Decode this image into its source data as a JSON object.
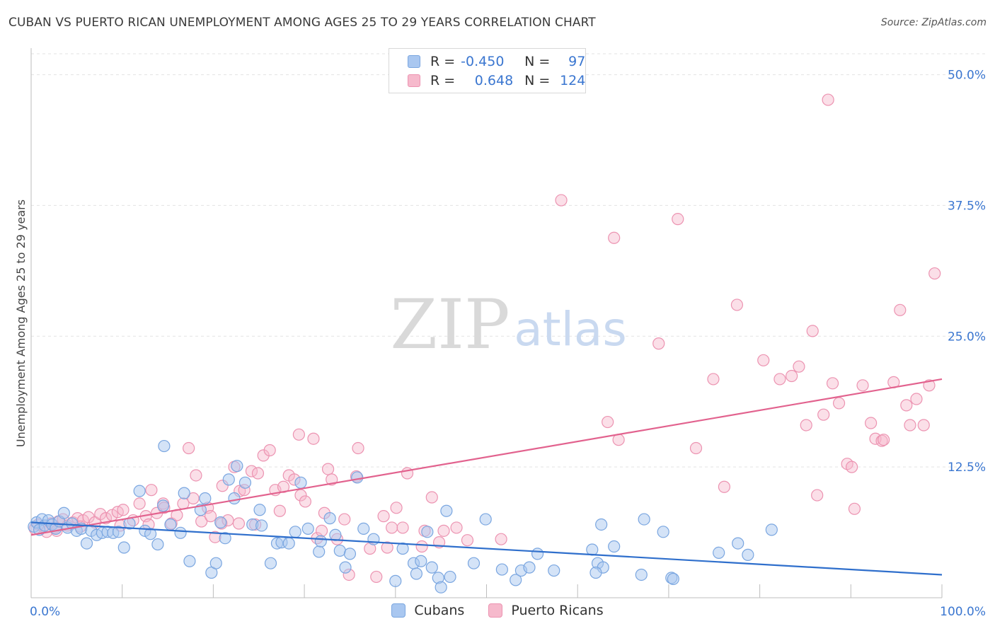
{
  "header": {
    "title": "CUBAN VS PUERTO RICAN UNEMPLOYMENT AMONG AGES 25 TO 29 YEARS CORRELATION CHART",
    "source": "Source: ZipAtlas.com"
  },
  "watermark": {
    "zip": "ZIP",
    "atlas": "atlas"
  },
  "legend": {
    "rows": [
      {
        "r_label": "R =",
        "r_value": "-0.450",
        "n_label": "N =",
        "n_value": "97"
      },
      {
        "r_label": "R =",
        "r_value": "0.648",
        "n_label": "N =",
        "n_value": "124"
      }
    ]
  },
  "bottom_legend": {
    "cubans": "Cubans",
    "puerto_ricans": "Puerto Ricans"
  },
  "colors": {
    "cubans_fill": "#a9c7f0",
    "cubans_stroke": "#7aa6e0",
    "cubans_line": "#2f6fcc",
    "pr_fill": "#f6b9cc",
    "pr_stroke": "#ec93b1",
    "pr_line": "#e2628e",
    "axis_text": "#3a76d0"
  },
  "chart_data": {
    "type": "scatter",
    "title": "CUBAN VS PUERTO RICAN UNEMPLOYMENT AMONG AGES 25 TO 29 YEARS CORRELATION CHART",
    "xlabel": "",
    "ylabel": "Unemployment Among Ages 25 to 29 years",
    "xlim": [
      0,
      100
    ],
    "ylim": [
      0,
      52
    ],
    "x_tick_labels": [
      {
        "value": 0,
        "label": "0.0%"
      },
      {
        "value": 100,
        "label": "100.0%"
      }
    ],
    "y_tick_labels": [
      {
        "value": 12.5,
        "label": "12.5%"
      },
      {
        "value": 25,
        "label": "25.0%"
      },
      {
        "value": 37.5,
        "label": "37.5%"
      },
      {
        "value": 50,
        "label": "50.0%"
      }
    ],
    "x_minor_ticks": [
      10,
      20,
      30,
      40,
      50,
      60,
      70,
      80,
      90,
      100
    ],
    "grid": true,
    "legend_placement": "top-center",
    "series": [
      {
        "name": "Cubans",
        "trend": {
          "x": [
            0,
            100
          ],
          "y": [
            7.2,
            2.2
          ]
        },
        "points": [
          [
            0.3,
            6.8
          ],
          [
            0.6,
            7.2
          ],
          [
            0.9,
            6.5
          ],
          [
            1.2,
            7.5
          ],
          [
            1.5,
            6.9
          ],
          [
            1.9,
            7.4
          ],
          [
            2.3,
            7.0
          ],
          [
            2.7,
            6.6
          ],
          [
            3.1,
            7.3
          ],
          [
            3.6,
            8.1
          ],
          [
            4.0,
            6.7
          ],
          [
            4.5,
            7.1
          ],
          [
            5.0,
            6.4
          ],
          [
            5.5,
            6.6
          ],
          [
            6.1,
            5.2
          ],
          [
            6.6,
            6.4
          ],
          [
            7.2,
            6.0
          ],
          [
            7.8,
            6.2
          ],
          [
            8.4,
            6.3
          ],
          [
            9.0,
            6.2
          ],
          [
            9.6,
            6.3
          ],
          [
            10.2,
            4.8
          ],
          [
            10.8,
            7.1
          ],
          [
            11.9,
            10.2
          ],
          [
            12.5,
            6.4
          ],
          [
            13.1,
            6.1
          ],
          [
            13.9,
            5.1
          ],
          [
            14.5,
            8.8
          ],
          [
            14.6,
            14.5
          ],
          [
            15.3,
            7.0
          ],
          [
            16.4,
            6.2
          ],
          [
            16.8,
            10.0
          ],
          [
            17.4,
            3.5
          ],
          [
            18.6,
            8.4
          ],
          [
            19.1,
            9.5
          ],
          [
            19.8,
            2.4
          ],
          [
            20.3,
            3.3
          ],
          [
            20.8,
            7.2
          ],
          [
            21.3,
            5.7
          ],
          [
            21.7,
            11.3
          ],
          [
            22.3,
            9.5
          ],
          [
            22.6,
            12.6
          ],
          [
            23.5,
            11.0
          ],
          [
            24.3,
            7.0
          ],
          [
            25.1,
            8.4
          ],
          [
            25.3,
            6.9
          ],
          [
            26.3,
            3.3
          ],
          [
            27.0,
            5.2
          ],
          [
            27.5,
            5.3
          ],
          [
            28.3,
            5.2
          ],
          [
            29.0,
            6.3
          ],
          [
            29.6,
            11.0
          ],
          [
            30.4,
            6.6
          ],
          [
            31.6,
            4.4
          ],
          [
            31.8,
            5.4
          ],
          [
            32.8,
            7.6
          ],
          [
            33.4,
            6.0
          ],
          [
            33.9,
            4.5
          ],
          [
            34.5,
            2.9
          ],
          [
            35.0,
            4.2
          ],
          [
            35.8,
            11.5
          ],
          [
            36.5,
            6.6
          ],
          [
            37.6,
            5.6
          ],
          [
            40.0,
            1.6
          ],
          [
            40.8,
            4.7
          ],
          [
            42.0,
            3.3
          ],
          [
            42.3,
            2.3
          ],
          [
            42.8,
            3.5
          ],
          [
            43.5,
            6.3
          ],
          [
            44.0,
            2.9
          ],
          [
            44.7,
            1.9
          ],
          [
            45.0,
            1.0
          ],
          [
            45.6,
            8.3
          ],
          [
            48.6,
            3.3
          ],
          [
            49.9,
            7.5
          ],
          [
            51.7,
            2.7
          ],
          [
            53.2,
            1.7
          ],
          [
            53.8,
            2.6
          ],
          [
            54.7,
            2.9
          ],
          [
            55.6,
            4.2
          ],
          [
            57.4,
            2.6
          ],
          [
            61.6,
            4.6
          ],
          [
            62.2,
            3.3
          ],
          [
            62.6,
            7.0
          ],
          [
            62.8,
            2.9
          ],
          [
            64.0,
            4.9
          ],
          [
            67.0,
            2.2
          ],
          [
            67.3,
            7.5
          ],
          [
            69.4,
            6.3
          ],
          [
            70.3,
            1.9
          ],
          [
            70.5,
            1.8
          ],
          [
            75.5,
            4.3
          ],
          [
            77.6,
            5.2
          ],
          [
            78.7,
            4.1
          ],
          [
            81.3,
            6.5
          ],
          [
            62.0,
            2.4
          ],
          [
            46.0,
            2.0
          ]
        ]
      },
      {
        "name": "Puerto Ricans",
        "trend": {
          "x": [
            0,
            100
          ],
          "y": [
            6.0,
            20.9
          ]
        },
        "points": [
          [
            0.4,
            6.6
          ],
          [
            0.8,
            7.0
          ],
          [
            1.3,
            6.8
          ],
          [
            1.7,
            6.3
          ],
          [
            2.2,
            7.1
          ],
          [
            2.6,
            6.7
          ],
          [
            3.0,
            7.3
          ],
          [
            3.5,
            7.5
          ],
          [
            4.0,
            6.9
          ],
          [
            4.6,
            7.2
          ],
          [
            5.1,
            7.6
          ],
          [
            5.7,
            7.4
          ],
          [
            6.3,
            7.7
          ],
          [
            7.0,
            7.2
          ],
          [
            7.6,
            8.0
          ],
          [
            8.2,
            7.6
          ],
          [
            8.9,
            7.9
          ],
          [
            9.5,
            8.2
          ],
          [
            10.1,
            8.4
          ],
          [
            11.2,
            7.4
          ],
          [
            11.9,
            9.0
          ],
          [
            12.6,
            7.8
          ],
          [
            13.2,
            10.3
          ],
          [
            13.8,
            8.1
          ],
          [
            14.5,
            9.0
          ],
          [
            15.4,
            7.1
          ],
          [
            16.0,
            7.9
          ],
          [
            16.7,
            9.0
          ],
          [
            17.3,
            14.3
          ],
          [
            18.1,
            11.7
          ],
          [
            18.7,
            7.3
          ],
          [
            19.4,
            8.6
          ],
          [
            20.2,
            5.8
          ],
          [
            20.9,
            7.1
          ],
          [
            21.6,
            7.4
          ],
          [
            22.3,
            12.5
          ],
          [
            22.9,
            10.2
          ],
          [
            23.4,
            10.3
          ],
          [
            24.2,
            12.1
          ],
          [
            24.9,
            11.9
          ],
          [
            25.5,
            13.6
          ],
          [
            26.2,
            14.1
          ],
          [
            26.8,
            10.3
          ],
          [
            27.7,
            10.6
          ],
          [
            28.3,
            11.7
          ],
          [
            28.9,
            11.3
          ],
          [
            29.4,
            15.6
          ],
          [
            29.6,
            9.8
          ],
          [
            30.1,
            9.2
          ],
          [
            31.0,
            15.2
          ],
          [
            31.4,
            5.7
          ],
          [
            32.2,
            8.1
          ],
          [
            32.6,
            12.3
          ],
          [
            33.0,
            11.3
          ],
          [
            33.6,
            5.6
          ],
          [
            34.4,
            7.5
          ],
          [
            34.9,
            2.2
          ],
          [
            35.7,
            11.6
          ],
          [
            35.9,
            14.3
          ],
          [
            37.2,
            4.7
          ],
          [
            37.9,
            2.0
          ],
          [
            39.1,
            4.8
          ],
          [
            39.6,
            6.7
          ],
          [
            40.1,
            8.6
          ],
          [
            40.8,
            6.7
          ],
          [
            41.3,
            11.9
          ],
          [
            42.9,
            4.9
          ],
          [
            43.2,
            6.4
          ],
          [
            44.0,
            9.6
          ],
          [
            44.8,
            5.3
          ],
          [
            45.3,
            6.4
          ],
          [
            46.7,
            6.7
          ],
          [
            47.9,
            5.5
          ],
          [
            51.6,
            5.6
          ],
          [
            58.2,
            38.0
          ],
          [
            63.3,
            16.8
          ],
          [
            64.0,
            34.4
          ],
          [
            64.5,
            15.1
          ],
          [
            68.9,
            24.3
          ],
          [
            71.0,
            36.2
          ],
          [
            73.0,
            14.3
          ],
          [
            74.9,
            20.9
          ],
          [
            76.1,
            10.6
          ],
          [
            77.5,
            28.0
          ],
          [
            80.4,
            22.7
          ],
          [
            82.2,
            20.9
          ],
          [
            83.5,
            21.2
          ],
          [
            84.3,
            22.1
          ],
          [
            85.1,
            16.5
          ],
          [
            85.8,
            25.5
          ],
          [
            86.3,
            9.8
          ],
          [
            87.0,
            17.5
          ],
          [
            87.5,
            47.6
          ],
          [
            88.0,
            20.5
          ],
          [
            88.7,
            18.6
          ],
          [
            89.6,
            12.8
          ],
          [
            90.1,
            12.5
          ],
          [
            90.4,
            8.5
          ],
          [
            91.3,
            20.3
          ],
          [
            92.2,
            16.7
          ],
          [
            92.7,
            15.2
          ],
          [
            93.4,
            15.0
          ],
          [
            93.6,
            15.1
          ],
          [
            94.7,
            20.6
          ],
          [
            95.4,
            27.5
          ],
          [
            96.1,
            18.4
          ],
          [
            96.5,
            16.5
          ],
          [
            97.2,
            19.0
          ],
          [
            98.0,
            16.5
          ],
          [
            98.6,
            20.3
          ],
          [
            99.2,
            31.0
          ],
          [
            21.0,
            10.7
          ],
          [
            14.6,
            8.6
          ],
          [
            9.8,
            6.9
          ],
          [
            2.8,
            6.4
          ],
          [
            5.4,
            6.8
          ],
          [
            38.7,
            7.8
          ],
          [
            27.3,
            8.3
          ],
          [
            22.8,
            7.1
          ],
          [
            12.9,
            7.0
          ],
          [
            17.8,
            9.5
          ],
          [
            31.9,
            6.4
          ],
          [
            24.6,
            7.0
          ],
          [
            19.7,
            7.8
          ]
        ]
      }
    ]
  }
}
